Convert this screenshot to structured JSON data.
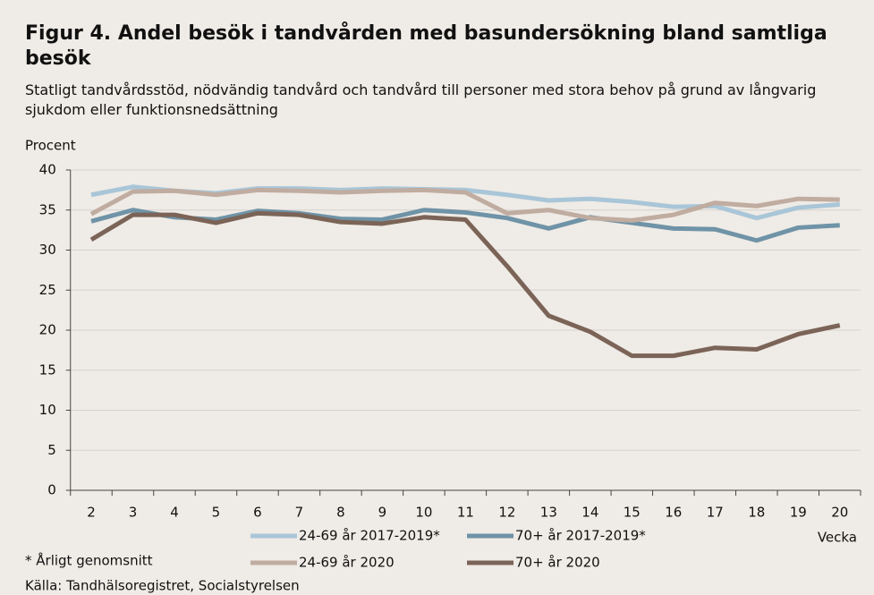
{
  "chart_data": {
    "type": "line",
    "title": "Figur 4. Andel besök i tandvården med basundersökning bland samtliga besök",
    "subtitle": "Statligt tandvårdsstöd, nödvändig tandvård och tandvård till personer med stora behov på grund av långvarig sjukdom eller funktionsnedsättning",
    "ylabel": "Procent",
    "xlabel": "Vecka",
    "footnote": "* Årligt genomsnitt",
    "source": "Källa: Tandhälsoregistret, Socialstyrelsen",
    "x": [
      2,
      3,
      4,
      5,
      6,
      7,
      8,
      9,
      10,
      11,
      12,
      13,
      14,
      15,
      16,
      17,
      18,
      19,
      20
    ],
    "xlim": [
      1.5,
      20.5
    ],
    "ylim": [
      0,
      40
    ],
    "yticks": [
      0,
      5,
      10,
      15,
      20,
      25,
      30,
      35,
      40
    ],
    "grid": true,
    "series": [
      {
        "name": "24-69 år 2017-2019*",
        "color": "#a9c6d8",
        "values": [
          36.9,
          37.9,
          37.4,
          37.1,
          37.7,
          37.7,
          37.5,
          37.7,
          37.6,
          37.5,
          36.9,
          36.2,
          36.4,
          36.0,
          35.4,
          35.5,
          34.0,
          35.3,
          35.7
        ]
      },
      {
        "name": "70+ år 2017-2019*",
        "color": "#6f93a7",
        "values": [
          33.6,
          35.0,
          34.1,
          33.8,
          34.9,
          34.6,
          33.9,
          33.8,
          35.0,
          34.7,
          34.0,
          32.7,
          34.1,
          33.4,
          32.7,
          32.6,
          31.2,
          32.8,
          33.1
        ]
      },
      {
        "name": "24-69 år 2020",
        "color": "#c0aca0",
        "values": [
          34.5,
          37.3,
          37.4,
          36.9,
          37.5,
          37.4,
          37.2,
          37.4,
          37.5,
          37.2,
          34.6,
          35.0,
          34.0,
          33.7,
          34.4,
          35.9,
          35.5,
          36.4,
          36.3
        ]
      },
      {
        "name": "70+ år 2020",
        "color": "#7b6457",
        "values": [
          31.3,
          34.4,
          34.4,
          33.4,
          34.6,
          34.4,
          33.5,
          33.3,
          34.1,
          33.8,
          28.0,
          21.8,
          19.8,
          16.8,
          16.8,
          17.8,
          17.6,
          19.5,
          20.6
        ]
      }
    ]
  }
}
